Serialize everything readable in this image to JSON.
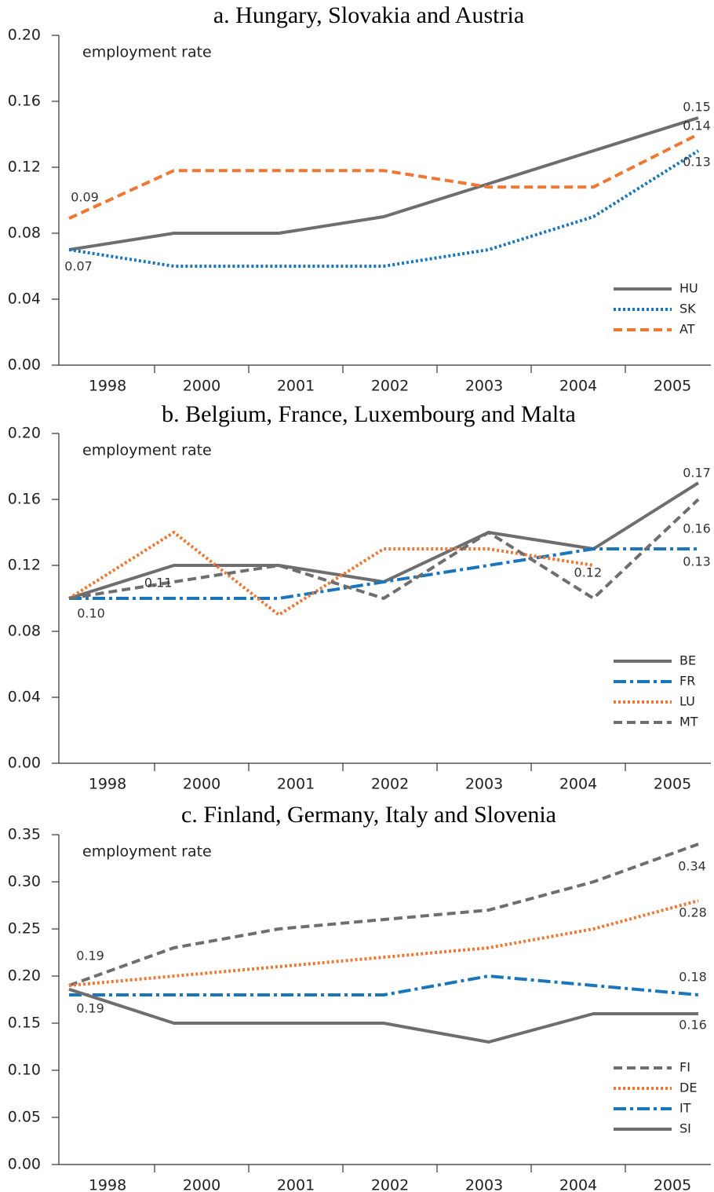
{
  "chart_data": [
    {
      "type": "line",
      "title": "a. Hungary, Slovakia and Austria",
      "y_label": "employment rate",
      "categories": [
        "1998",
        "2000",
        "2001",
        "2002",
        "2003",
        "2004",
        "2005"
      ],
      "ylim": [
        0,
        0.2
      ],
      "yticks": [
        {
          "value": 0,
          "label": "0.00"
        },
        {
          "value": 0.04,
          "label": "0.04"
        },
        {
          "value": 0.08,
          "label": "0.08"
        },
        {
          "value": 0.12,
          "label": "0.12"
        },
        {
          "value": 0.16,
          "label": "0.16"
        },
        {
          "value": 0.2,
          "label": "0.20"
        }
      ],
      "series": [
        {
          "name": "HU",
          "color": "#6e6e6e",
          "dash": "solid",
          "values": [
            0.07,
            0.08,
            0.08,
            0.09,
            0.11,
            0.13,
            0.15
          ],
          "value_labels": [
            "0.07",
            null,
            null,
            null,
            null,
            null,
            "0.15"
          ]
        },
        {
          "name": "SK",
          "color": "#1a75bb",
          "dash": "dotted",
          "values": [
            0.07,
            0.06,
            0.06,
            0.06,
            0.07,
            0.09,
            0.13
          ],
          "value_labels": [
            null,
            null,
            null,
            null,
            null,
            null,
            "0.13"
          ]
        },
        {
          "name": "AT",
          "color": "#ee7733",
          "dash": "dashed",
          "values": [
            0.089,
            0.118,
            0.118,
            0.118,
            0.108,
            0.108,
            0.14
          ],
          "value_labels": [
            "0.09",
            null,
            null,
            null,
            null,
            null,
            "0.14"
          ]
        }
      ]
    },
    {
      "type": "line",
      "title": "b. Belgium, France, Luxembourg and Malta",
      "y_label": "employment rate",
      "categories": [
        "1998",
        "2000",
        "2001",
        "2002",
        "2003",
        "2004",
        "2005"
      ],
      "ylim": [
        0,
        0.2
      ],
      "yticks": [
        {
          "value": 0,
          "label": "0.00"
        },
        {
          "value": 0.04,
          "label": "0.04"
        },
        {
          "value": 0.08,
          "label": "0.08"
        },
        {
          "value": 0.12,
          "label": "0.12"
        },
        {
          "value": 0.16,
          "label": "0.16"
        },
        {
          "value": 0.2,
          "label": "0.20"
        }
      ],
      "series": [
        {
          "name": "BE",
          "color": "#6e6e6e",
          "dash": "solid",
          "values": [
            0.1,
            0.12,
            0.12,
            0.11,
            0.14,
            0.13,
            0.17
          ],
          "value_labels": [
            "0.10",
            null,
            null,
            null,
            null,
            null,
            "0.17"
          ]
        },
        {
          "name": "FR",
          "color": "#1a75bb",
          "dash": "dashdot",
          "values": [
            0.1,
            0.1,
            0.1,
            0.11,
            0.12,
            0.13,
            0.13
          ],
          "value_labels": [
            null,
            null,
            null,
            null,
            null,
            null,
            "0.13"
          ]
        },
        {
          "name": "LU",
          "color": "#ee7733",
          "dash": "dotted",
          "values": [
            0.1,
            0.14,
            0.09,
            0.13,
            0.13,
            0.12,
            null
          ],
          "value_labels": [
            null,
            null,
            null,
            null,
            null,
            "0.12",
            null
          ]
        },
        {
          "name": "MT",
          "color": "#6e6e6e",
          "dash": "dashed",
          "values": [
            0.1,
            0.11,
            0.12,
            0.1,
            0.14,
            0.1,
            0.16
          ],
          "value_labels": [
            null,
            "0.11",
            null,
            null,
            null,
            null,
            "0.16"
          ]
        }
      ]
    },
    {
      "type": "line",
      "title": "c. Finland, Germany, Italy and Slovenia",
      "y_label": "employment rate",
      "categories": [
        "1998",
        "2000",
        "2001",
        "2002",
        "2003",
        "2004",
        "2005"
      ],
      "ylim": [
        0,
        0.35
      ],
      "yticks": [
        {
          "value": 0,
          "label": "0.00"
        },
        {
          "value": 0.05,
          "label": "0.05"
        },
        {
          "value": 0.1,
          "label": "0.10"
        },
        {
          "value": 0.15,
          "label": "0.15"
        },
        {
          "value": 0.2,
          "label": "0.20"
        },
        {
          "value": 0.25,
          "label": "0.25"
        },
        {
          "value": 0.3,
          "label": "0.30"
        },
        {
          "value": 0.35,
          "label": "0.35"
        }
      ],
      "series": [
        {
          "name": "FI",
          "color": "#6e6e6e",
          "dash": "dashed",
          "values": [
            0.19,
            0.23,
            0.25,
            0.26,
            0.27,
            0.3,
            0.34
          ],
          "value_labels": [
            "0.19",
            null,
            null,
            null,
            null,
            null,
            "0.34"
          ]
        },
        {
          "name": "DE",
          "color": "#ee7733",
          "dash": "dotted",
          "values": [
            0.19,
            0.2,
            0.21,
            0.22,
            0.23,
            0.25,
            0.28
          ],
          "value_labels": [
            null,
            null,
            null,
            null,
            null,
            null,
            "0.28"
          ]
        },
        {
          "name": "IT",
          "color": "#1a75bb",
          "dash": "dashdot",
          "values": [
            0.18,
            0.18,
            0.18,
            0.18,
            0.2,
            0.19,
            0.18
          ],
          "value_labels": [
            null,
            null,
            null,
            null,
            null,
            null,
            "0.18"
          ]
        },
        {
          "name": "SI",
          "color": "#6e6e6e",
          "dash": "solid",
          "values": [
            0.186,
            0.15,
            0.15,
            0.15,
            0.13,
            0.16,
            0.16
          ],
          "value_labels": [
            "0.19",
            null,
            null,
            null,
            null,
            null,
            "0.16"
          ]
        }
      ]
    }
  ]
}
